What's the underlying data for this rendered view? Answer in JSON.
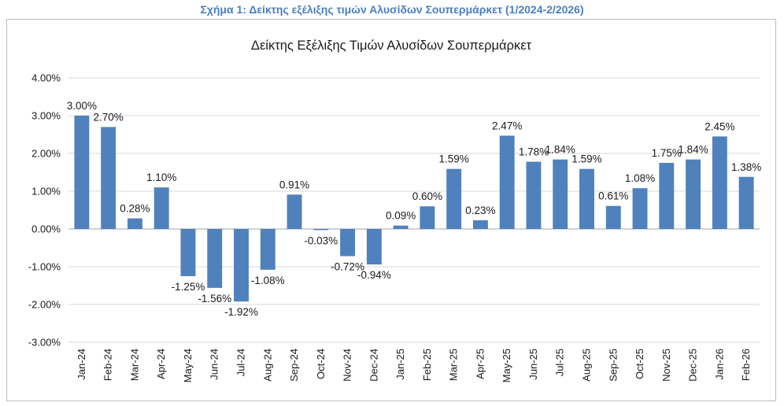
{
  "caption": "Σχήμα 1: Δείκτης εξέλιξης τιμών Αλυσίδων Σουπερμάρκετ (1/2024-2/2026)",
  "chart_data": {
    "type": "bar",
    "title": "Δείκτης Εξέλιξης Τιμών Αλυσίδων Σουπερμάρκετ",
    "xlabel": "",
    "ylabel": "",
    "categories": [
      "Jan-24",
      "Feb-24",
      "Mar-24",
      "Apr-24",
      "May-24",
      "Jun-24",
      "Jul-24",
      "Aug-24",
      "Sep-24",
      "Oct-24",
      "Nov-24",
      "Dec-24",
      "Jan-25",
      "Feb-25",
      "Mar-25",
      "Apr-25",
      "May-25",
      "Jun-25",
      "Jul-25",
      "Aug-25",
      "Sep-25",
      "Oct-25",
      "Nov-25",
      "Dec-25",
      "Jan-26",
      "Feb-26"
    ],
    "values": [
      3.0,
      2.7,
      0.28,
      1.1,
      -1.25,
      -1.56,
      -1.92,
      -1.08,
      0.91,
      -0.03,
      -0.72,
      -0.94,
      0.09,
      0.6,
      1.59,
      0.23,
      2.47,
      1.78,
      1.84,
      1.59,
      0.61,
      1.08,
      1.75,
      1.84,
      2.45,
      1.38
    ],
    "data_labels": [
      "3.00%",
      "2.70%",
      "0.28%",
      "1.10%",
      "-1.25%",
      "-1.56%",
      "-1.92%",
      "-1.08%",
      "0.91%",
      "-0.03%",
      "-0.72%",
      "-0.94%",
      "0.09%",
      "0.60%",
      "1.59%",
      "0.23%",
      "2.47%",
      "1.78%",
      "1.84%",
      "1.59%",
      "0.61%",
      "1.08%",
      "1.75%",
      "1.84%",
      "2.45%",
      "1.38%"
    ],
    "ylim": [
      -3,
      4
    ],
    "yticks": [
      4,
      3,
      2,
      1,
      0,
      -1,
      -2,
      -3
    ],
    "ytick_labels": [
      "4.00%",
      "3.00%",
      "2.00%",
      "1.00%",
      "0.00%",
      "-1.00%",
      "-2.00%",
      "-3.00%"
    ],
    "bar_color": "#4f81bd",
    "grid": true,
    "legend": "none"
  }
}
